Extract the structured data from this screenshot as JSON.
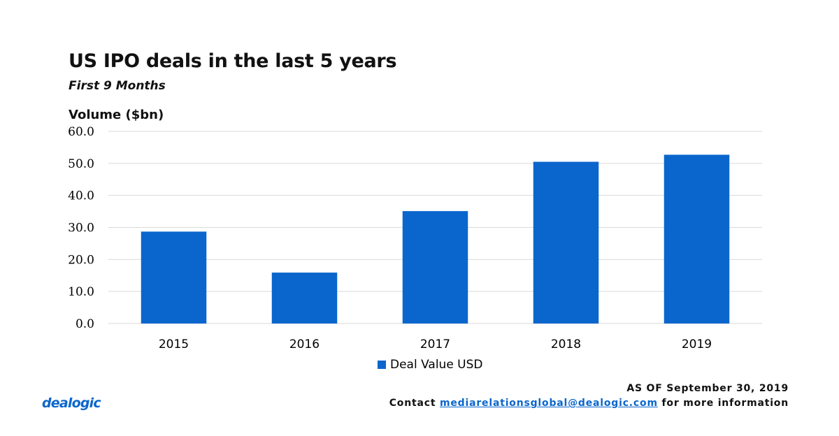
{
  "header": {
    "title": "US IPO deals in the last 5 years",
    "subtitle": "First 9 Months",
    "ylabel": "Volume ($bn)"
  },
  "footer": {
    "logo": "dealogic",
    "as_of": "AS OF September 30, 2019",
    "contact_prefix": "Contact",
    "contact_email": "mediarelationsglobal@dealogic.com",
    "contact_suffix": "for more information"
  },
  "colors": {
    "bar": "#0a66cc",
    "grid": "#d9d9d9",
    "link": "#0a66cc"
  },
  "chart_data": {
    "type": "bar",
    "title": "US IPO deals in the last 5 years",
    "subtitle": "First 9 Months",
    "xlabel": "",
    "ylabel": "Volume ($bn)",
    "categories": [
      "2015",
      "2016",
      "2017",
      "2018",
      "2019"
    ],
    "series": [
      {
        "name": "Deal Value USD",
        "values": [
          28.7,
          15.9,
          35.1,
          50.5,
          52.7
        ]
      }
    ],
    "ylim": [
      0,
      60
    ],
    "yticks": [
      "0.0",
      "10.0",
      "20.0",
      "30.0",
      "40.0",
      "50.0",
      "60.0"
    ],
    "grid": true,
    "legend": "bottom-center"
  }
}
